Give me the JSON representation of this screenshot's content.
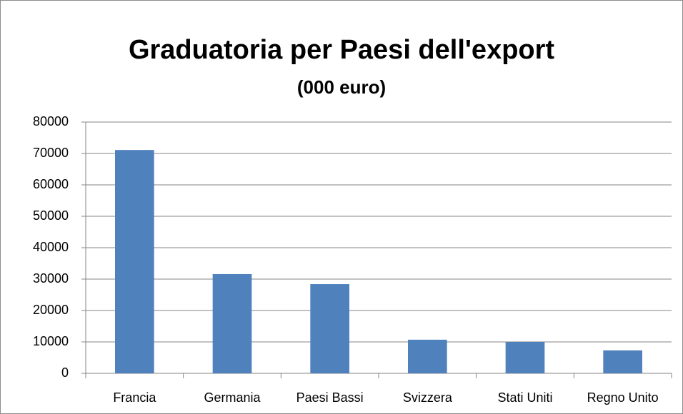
{
  "chart_data": {
    "type": "bar",
    "title": "Graduatoria per Paesi dell'export",
    "subtitle": "(000 euro)",
    "categories": [
      "Francia",
      "Germania",
      "Paesi Bassi",
      "Svizzera",
      "Stati Uniti",
      "Regno Unito"
    ],
    "values": [
      71100,
      31600,
      28400,
      10700,
      10000,
      7300
    ],
    "color": "#4f81bd",
    "ylim": [
      0,
      80000
    ],
    "yticks": [
      0,
      10000,
      20000,
      30000,
      40000,
      50000,
      60000,
      70000,
      80000
    ],
    "grid": true
  }
}
